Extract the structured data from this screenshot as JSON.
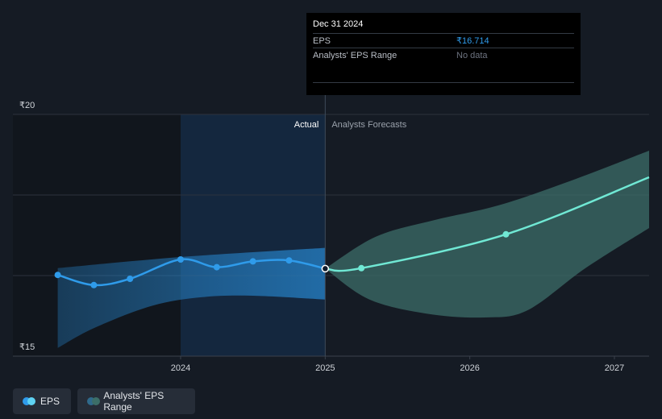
{
  "tooltip": {
    "date": "Dec 31 2024",
    "rows": [
      {
        "label": "EPS",
        "value": "₹16.714"
      },
      {
        "label": "Analysts' EPS Range",
        "value": "No data"
      }
    ]
  },
  "legend": [
    {
      "label": "EPS",
      "color_a": "#2f9bea",
      "color_b": "#5fd3f3"
    },
    {
      "label": "Analysts' EPS Range",
      "color_a": "#2f6a8c",
      "color_b": "#3c6e68"
    }
  ],
  "colors": {
    "background": "#151b24",
    "actual_shade": "#14273e",
    "eps_line": "#2f9bea",
    "forecast_line": "#70e8d4",
    "actual_band": "#2682c8",
    "forecast_band": "#3c6e68",
    "grid": "#2d333d"
  },
  "chart_data": {
    "type": "line",
    "y_tick_labels": [
      "₹20",
      "₹15"
    ],
    "ylim": [
      15,
      20
    ],
    "x_ticks": [
      {
        "label": "2024",
        "x": 2024.0
      },
      {
        "label": "2025",
        "x": 2025.0
      },
      {
        "label": "2026",
        "x": 2026.0
      },
      {
        "label": "2027",
        "x": 2027.0
      }
    ],
    "xlim": [
      2022.84,
      2027.24
    ],
    "divider_x": 2025.0,
    "shade_start_x": 2024.0,
    "region_labels": {
      "actual": "Actual",
      "forecast": "Analysts Forecasts"
    },
    "grid": true,
    "series": [
      {
        "name": "EPS",
        "kind": "actual",
        "points": [
          {
            "x": 2023.15,
            "y": 16.68
          },
          {
            "x": 2023.4,
            "y": 16.47
          },
          {
            "x": 2023.65,
            "y": 16.6
          },
          {
            "x": 2024.0,
            "y": 17.0
          },
          {
            "x": 2024.25,
            "y": 16.84
          },
          {
            "x": 2024.5,
            "y": 16.96
          },
          {
            "x": 2024.75,
            "y": 16.98
          },
          {
            "x": 2025.0,
            "y": 16.81
          }
        ]
      },
      {
        "name": "EPS",
        "kind": "forecast",
        "points": [
          {
            "x": 2025.0,
            "y": 16.81
          },
          {
            "x": 2025.25,
            "y": 16.82
          },
          {
            "x": 2026.25,
            "y": 17.52
          },
          {
            "x": 2027.24,
            "y": 18.7
          }
        ]
      }
    ],
    "ranges": [
      {
        "name": "Analysts' EPS Range",
        "kind": "actual",
        "upper": [
          {
            "x": 2023.15,
            "y": 16.82
          },
          {
            "x": 2024.0,
            "y": 17.05
          },
          {
            "x": 2025.0,
            "y": 17.24
          }
        ],
        "lower": [
          {
            "x": 2023.15,
            "y": 15.17
          },
          {
            "x": 2023.4,
            "y": 15.58
          },
          {
            "x": 2023.8,
            "y": 16.04
          },
          {
            "x": 2024.15,
            "y": 16.22
          },
          {
            "x": 2024.5,
            "y": 16.25
          },
          {
            "x": 2025.0,
            "y": 16.17
          }
        ]
      },
      {
        "name": "Analysts' EPS Range",
        "kind": "forecast",
        "upper": [
          {
            "x": 2025.0,
            "y": 16.81
          },
          {
            "x": 2025.35,
            "y": 17.47
          },
          {
            "x": 2025.75,
            "y": 17.81
          },
          {
            "x": 2026.2,
            "y": 18.12
          },
          {
            "x": 2026.7,
            "y": 18.63
          },
          {
            "x": 2027.24,
            "y": 19.25
          }
        ],
        "lower": [
          {
            "x": 2025.0,
            "y": 16.81
          },
          {
            "x": 2025.3,
            "y": 16.18
          },
          {
            "x": 2025.7,
            "y": 15.88
          },
          {
            "x": 2026.1,
            "y": 15.8
          },
          {
            "x": 2026.4,
            "y": 15.95
          },
          {
            "x": 2026.8,
            "y": 16.82
          },
          {
            "x": 2027.24,
            "y": 17.65
          }
        ]
      }
    ]
  }
}
